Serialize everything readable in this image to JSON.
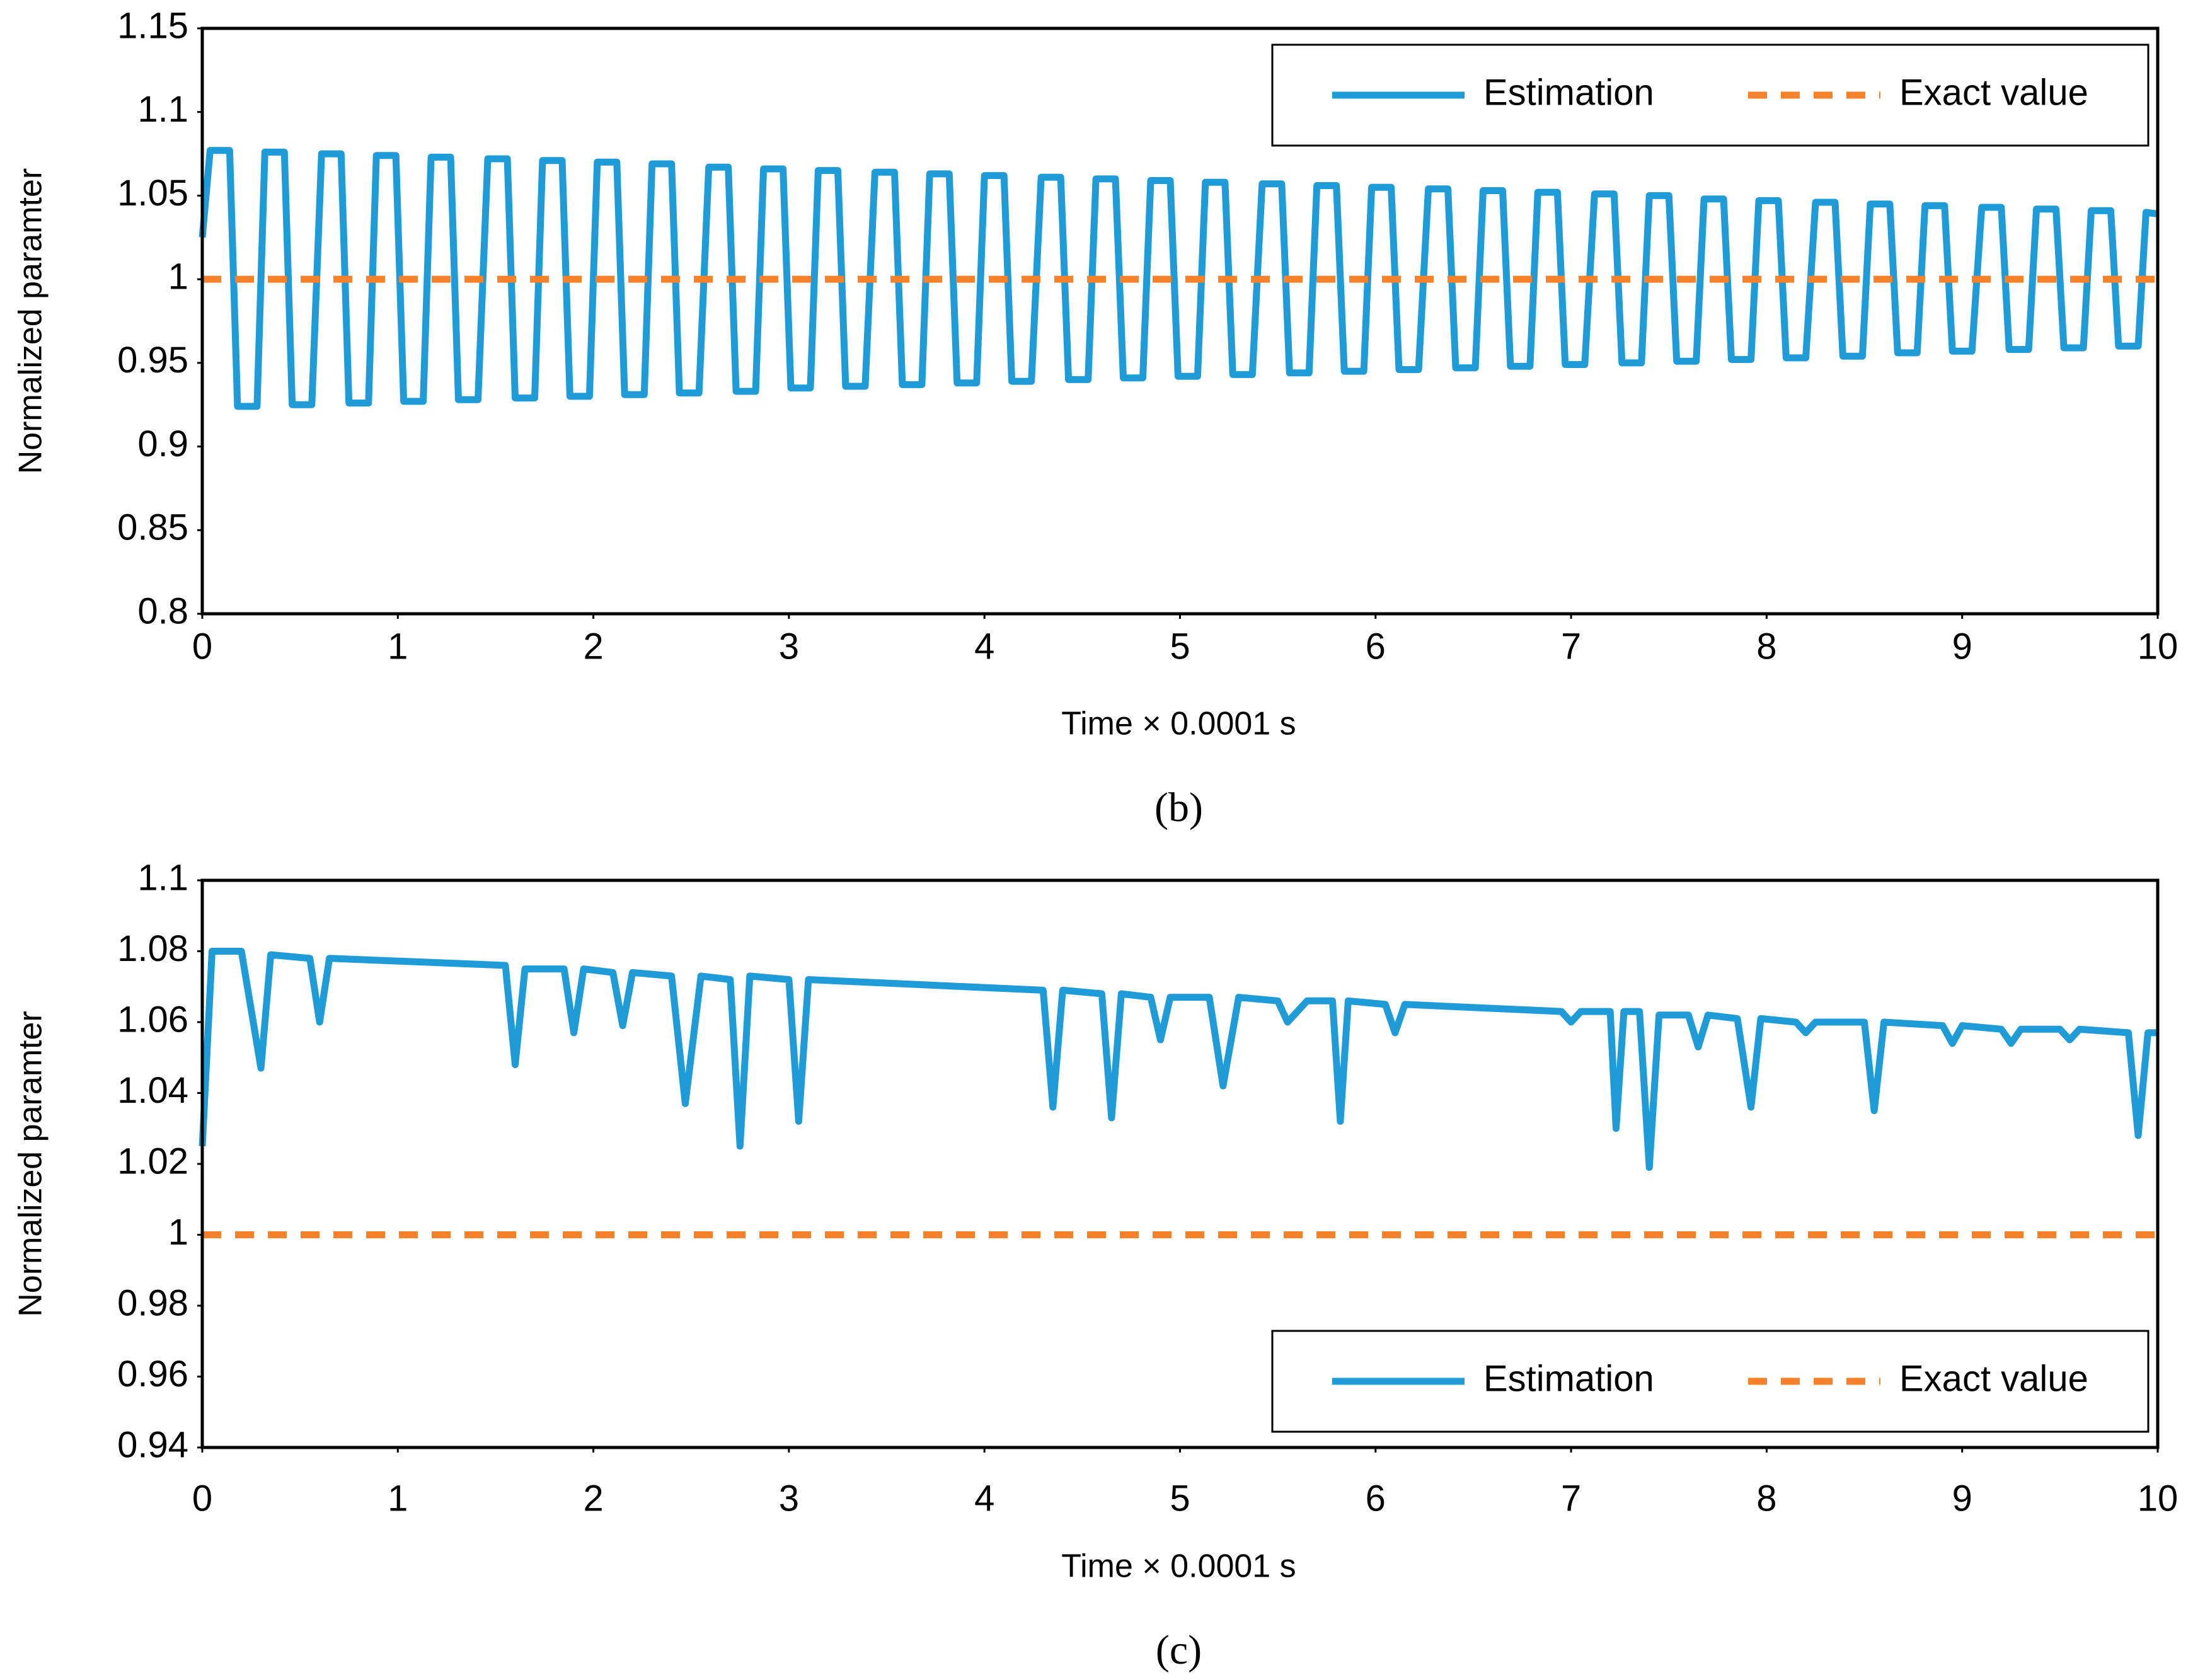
{
  "chart_data": [
    {
      "type": "line",
      "caption": "(b)",
      "xlabel": "Time × 0.0001 s",
      "ylabel": "Normalized paramter",
      "xlim": [
        0,
        10
      ],
      "xticks": [
        0,
        1,
        2,
        3,
        4,
        5,
        6,
        7,
        8,
        9,
        10
      ],
      "ylim": [
        0.8,
        1.15
      ],
      "yticks": [
        0.8,
        0.85,
        0.9,
        0.95,
        1,
        1.05,
        1.1,
        1.15
      ],
      "legend": "upper right",
      "series": [
        {
          "name": "Estimation",
          "color": "#1f9bd7",
          "linestyle": "solid",
          "x": [
            0,
            0.04,
            0.14,
            0.18,
            0.28,
            0.32,
            0.42,
            0.46,
            0.56,
            0.61,
            0.71,
            0.75,
            0.85,
            0.89,
            0.99,
            1.03,
            1.13,
            1.17,
            1.27,
            1.31,
            1.41,
            1.46,
            1.56,
            1.6,
            1.7,
            1.74,
            1.84,
            1.88,
            1.98,
            2.02,
            2.12,
            2.16,
            2.26,
            2.3,
            2.4,
            2.44,
            2.54,
            2.59,
            2.69,
            2.73,
            2.83,
            2.87,
            2.97,
            3.01,
            3.11,
            3.15,
            3.25,
            3.29,
            3.39,
            3.44,
            3.54,
            3.58,
            3.68,
            3.72,
            3.82,
            3.86,
            3.96,
            4,
            4.1,
            4.14,
            4.24,
            4.29,
            4.39,
            4.43,
            4.53,
            4.57,
            4.67,
            4.71,
            4.81,
            4.85,
            4.95,
            4.99,
            5.09,
            5.13,
            5.23,
            5.27,
            5.37,
            5.42,
            5.52,
            5.56,
            5.66,
            5.7,
            5.8,
            5.84,
            5.94,
            5.98,
            6.08,
            6.12,
            6.22,
            6.27,
            6.37,
            6.41,
            6.51,
            6.55,
            6.65,
            6.69,
            6.79,
            6.83,
            6.93,
            6.97,
            7.07,
            7.12,
            7.22,
            7.26,
            7.36,
            7.4,
            7.5,
            7.54,
            7.64,
            7.68,
            7.78,
            7.82,
            7.92,
            7.96,
            8.06,
            8.1,
            8.2,
            8.25,
            8.35,
            8.39,
            8.49,
            8.53,
            8.63,
            8.67,
            8.77,
            8.81,
            8.91,
            8.95,
            9.05,
            9.1,
            9.2,
            9.24,
            9.34,
            9.38,
            9.48,
            9.52,
            9.62,
            9.66,
            9.76,
            9.8,
            9.9,
            9.94,
            10
          ],
          "values": [
            1.025,
            1.077,
            1.077,
            0.924,
            0.924,
            1.076,
            1.076,
            0.925,
            0.925,
            1.075,
            1.075,
            0.926,
            0.926,
            1.074,
            1.074,
            0.927,
            0.927,
            1.073,
            1.073,
            0.928,
            0.928,
            1.072,
            1.072,
            0.929,
            0.929,
            1.071,
            1.071,
            0.93,
            0.93,
            1.07,
            1.07,
            0.931,
            0.931,
            1.069,
            1.069,
            0.932,
            0.932,
            1.067,
            1.067,
            0.933,
            0.933,
            1.066,
            1.066,
            0.935,
            0.935,
            1.065,
            1.065,
            0.936,
            0.936,
            1.064,
            1.064,
            0.937,
            0.937,
            1.063,
            1.063,
            0.938,
            0.938,
            1.062,
            1.062,
            0.939,
            0.939,
            1.061,
            1.061,
            0.94,
            0.94,
            1.06,
            1.06,
            0.941,
            0.941,
            1.059,
            1.059,
            0.942,
            0.942,
            1.058,
            1.058,
            0.943,
            0.943,
            1.057,
            1.057,
            0.944,
            0.944,
            1.056,
            1.056,
            0.945,
            0.945,
            1.055,
            1.055,
            0.946,
            0.946,
            1.054,
            1.054,
            0.947,
            0.947,
            1.053,
            1.053,
            0.948,
            0.948,
            1.052,
            1.052,
            0.949,
            0.949,
            1.051,
            1.051,
            0.95,
            0.95,
            1.05,
            1.05,
            0.951,
            0.951,
            1.048,
            1.048,
            0.952,
            0.952,
            1.047,
            1.047,
            0.953,
            0.953,
            1.046,
            1.046,
            0.954,
            0.954,
            1.045,
            1.045,
            0.956,
            0.956,
            1.044,
            1.044,
            0.957,
            0.957,
            1.043,
            1.043,
            0.958,
            0.958,
            1.042,
            1.042,
            0.959,
            0.959,
            1.041,
            1.041,
            0.96,
            0.96,
            1.04,
            1.039
          ]
        },
        {
          "name": "Exact value",
          "color": "#f5822a",
          "linestyle": "dashed",
          "x": [
            0,
            10
          ],
          "values": [
            1,
            1
          ]
        }
      ]
    },
    {
      "type": "line",
      "caption": "(c)",
      "xlabel": "Time × 0.0001 s",
      "ylabel": "Normalized paramter",
      "xlim": [
        0,
        10
      ],
      "xticks": [
        0,
        1,
        2,
        3,
        4,
        5,
        6,
        7,
        8,
        9,
        10
      ],
      "ylim": [
        0.94,
        1.1
      ],
      "yticks": [
        0.94,
        0.96,
        0.98,
        1,
        1.02,
        1.04,
        1.06,
        1.08,
        1.1
      ],
      "legend": "lower right",
      "series": [
        {
          "name": "Estimation",
          "color": "#1f9bd7",
          "linestyle": "solid",
          "x": [
            0,
            0.05,
            0.2,
            0.3,
            0.35,
            0.55,
            0.6,
            0.65,
            1.55,
            1.6,
            1.65,
            1.85,
            1.9,
            1.95,
            2.1,
            2.15,
            2.2,
            2.4,
            2.47,
            2.55,
            2.7,
            2.75,
            2.8,
            3,
            3.05,
            3.1,
            4.3,
            4.35,
            4.4,
            4.6,
            4.65,
            4.7,
            4.85,
            4.9,
            4.95,
            5.15,
            5.22,
            5.3,
            5.5,
            5.55,
            5.65,
            5.78,
            5.82,
            5.86,
            6.05,
            6.1,
            6.15,
            6.95,
            7,
            7.05,
            7.2,
            7.23,
            7.27,
            7.35,
            7.4,
            7.45,
            7.6,
            7.65,
            7.7,
            7.85,
            7.92,
            7.97,
            8.15,
            8.2,
            8.25,
            8.5,
            8.55,
            8.6,
            8.9,
            8.95,
            9,
            9.2,
            9.25,
            9.3,
            9.5,
            9.55,
            9.6,
            9.85,
            9.9,
            9.95,
            10
          ],
          "values": [
            1.025,
            1.08,
            1.08,
            1.047,
            1.079,
            1.078,
            1.06,
            1.078,
            1.076,
            1.048,
            1.075,
            1.075,
            1.057,
            1.075,
            1.074,
            1.059,
            1.074,
            1.073,
            1.037,
            1.073,
            1.072,
            1.025,
            1.073,
            1.072,
            1.032,
            1.072,
            1.069,
            1.036,
            1.069,
            1.068,
            1.033,
            1.068,
            1.067,
            1.055,
            1.067,
            1.067,
            1.042,
            1.067,
            1.066,
            1.06,
            1.066,
            1.066,
            1.032,
            1.066,
            1.065,
            1.057,
            1.065,
            1.063,
            1.06,
            1.063,
            1.063,
            1.03,
            1.063,
            1.063,
            1.019,
            1.062,
            1.062,
            1.053,
            1.062,
            1.061,
            1.036,
            1.061,
            1.06,
            1.057,
            1.06,
            1.06,
            1.035,
            1.06,
            1.059,
            1.054,
            1.059,
            1.058,
            1.054,
            1.058,
            1.058,
            1.055,
            1.058,
            1.057,
            1.028,
            1.057,
            1.057
          ]
        },
        {
          "name": "Exact value",
          "color": "#f5822a",
          "linestyle": "dashed",
          "x": [
            0,
            10
          ],
          "values": [
            1,
            1
          ]
        }
      ]
    }
  ]
}
